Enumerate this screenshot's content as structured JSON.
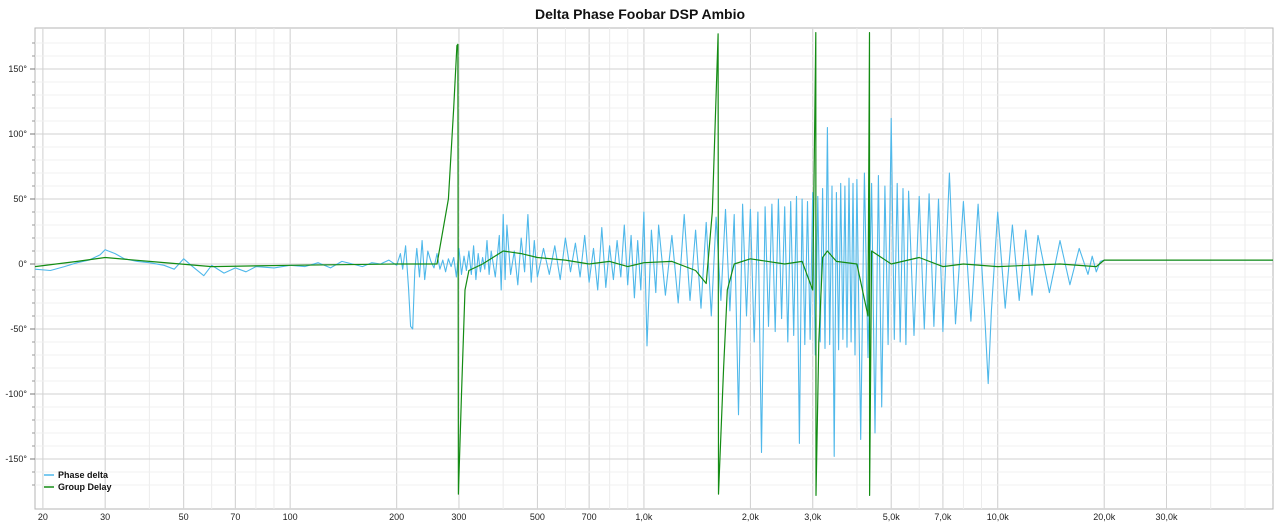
{
  "chart_data": {
    "type": "line",
    "title": "Delta Phase Foobar DSP Ambio",
    "xscale": "log",
    "xlim": [
      19,
      60000
    ],
    "ylim": [
      -180,
      180
    ],
    "grid": true,
    "legend_position": "bottom-left",
    "x_ticks": [
      {
        "value": 20,
        "label": "20"
      },
      {
        "value": 30,
        "label": "30"
      },
      {
        "value": 50,
        "label": "50"
      },
      {
        "value": 70,
        "label": "70"
      },
      {
        "value": 100,
        "label": "100"
      },
      {
        "value": 200,
        "label": "200"
      },
      {
        "value": 300,
        "label": "300"
      },
      {
        "value": 500,
        "label": "500"
      },
      {
        "value": 700,
        "label": "700"
      },
      {
        "value": 1000,
        "label": "1,0k"
      },
      {
        "value": 2000,
        "label": "2,0k"
      },
      {
        "value": 3000,
        "label": "3,0k"
      },
      {
        "value": 5000,
        "label": "5,0k"
      },
      {
        "value": 7000,
        "label": "7,0k"
      },
      {
        "value": 10000,
        "label": "10,0k"
      },
      {
        "value": 20000,
        "label": "20,0k"
      },
      {
        "value": 30000,
        "label": "30,0k"
      }
    ],
    "y_ticks": [
      {
        "value": 150,
        "label": "150°"
      },
      {
        "value": 100,
        "label": "100°"
      },
      {
        "value": 50,
        "label": "50°"
      },
      {
        "value": 0,
        "label": "0°"
      },
      {
        "value": -50,
        "label": "-50°"
      },
      {
        "value": -100,
        "label": "-100°"
      },
      {
        "value": -150,
        "label": "-150°"
      }
    ],
    "series": [
      {
        "name": "Phase delta",
        "color": "#4fb8ea",
        "points": [
          [
            19,
            -4
          ],
          [
            21,
            -5
          ],
          [
            23,
            -2
          ],
          [
            25,
            1
          ],
          [
            27,
            3
          ],
          [
            29,
            7
          ],
          [
            30,
            11
          ],
          [
            32,
            8
          ],
          [
            34,
            4
          ],
          [
            37,
            2
          ],
          [
            40,
            1
          ],
          [
            44,
            -1
          ],
          [
            47,
            -4
          ],
          [
            50,
            4
          ],
          [
            53,
            -2
          ],
          [
            57,
            -9
          ],
          [
            60,
            -1
          ],
          [
            65,
            -7
          ],
          [
            70,
            -3
          ],
          [
            75,
            -6
          ],
          [
            80,
            -2
          ],
          [
            90,
            -3
          ],
          [
            100,
            -1
          ],
          [
            110,
            -2
          ],
          [
            120,
            1
          ],
          [
            130,
            -3
          ],
          [
            140,
            2
          ],
          [
            150,
            0
          ],
          [
            160,
            -2
          ],
          [
            170,
            1
          ],
          [
            180,
            0
          ],
          [
            190,
            3
          ],
          [
            200,
            -1
          ],
          [
            205,
            8
          ],
          [
            208,
            -4
          ],
          [
            212,
            14
          ],
          [
            216,
            -18
          ],
          [
            219,
            -48
          ],
          [
            222,
            -50
          ],
          [
            225,
            -5
          ],
          [
            228,
            12
          ],
          [
            232,
            -10
          ],
          [
            236,
            18
          ],
          [
            240,
            -12
          ],
          [
            245,
            10
          ],
          [
            250,
            2
          ],
          [
            255,
            -3
          ],
          [
            260,
            8
          ],
          [
            265,
            -4
          ],
          [
            270,
            3
          ],
          [
            275,
            -6
          ],
          [
            280,
            4
          ],
          [
            285,
            -2
          ],
          [
            290,
            5
          ],
          [
            295,
            -10
          ],
          [
            300,
            12
          ],
          [
            305,
            -8
          ],
          [
            310,
            6
          ],
          [
            315,
            -5
          ],
          [
            320,
            10
          ],
          [
            325,
            -8
          ],
          [
            330,
            14
          ],
          [
            335,
            -12
          ],
          [
            340,
            8
          ],
          [
            345,
            -6
          ],
          [
            350,
            5
          ],
          [
            355,
            -4
          ],
          [
            360,
            18
          ],
          [
            365,
            -8
          ],
          [
            370,
            10
          ],
          [
            380,
            -10
          ],
          [
            390,
            22
          ],
          [
            395,
            -20
          ],
          [
            400,
            38
          ],
          [
            405,
            -12
          ],
          [
            410,
            30
          ],
          [
            420,
            -8
          ],
          [
            430,
            10
          ],
          [
            440,
            -16
          ],
          [
            450,
            20
          ],
          [
            460,
            -6
          ],
          [
            470,
            38
          ],
          [
            480,
            -14
          ],
          [
            490,
            18
          ],
          [
            500,
            -10
          ],
          [
            520,
            12
          ],
          [
            540,
            -8
          ],
          [
            560,
            14
          ],
          [
            580,
            -12
          ],
          [
            600,
            20
          ],
          [
            620,
            -6
          ],
          [
            640,
            16
          ],
          [
            660,
            -10
          ],
          [
            680,
            22
          ],
          [
            700,
            -14
          ],
          [
            720,
            12
          ],
          [
            740,
            -20
          ],
          [
            760,
            28
          ],
          [
            780,
            -18
          ],
          [
            800,
            14
          ],
          [
            820,
            -12
          ],
          [
            840,
            18
          ],
          [
            860,
            -10
          ],
          [
            880,
            30
          ],
          [
            900,
            -16
          ],
          [
            920,
            22
          ],
          [
            940,
            -26
          ],
          [
            960,
            18
          ],
          [
            980,
            -20
          ],
          [
            1000,
            40
          ],
          [
            1020,
            -63
          ],
          [
            1050,
            26
          ],
          [
            1080,
            -22
          ],
          [
            1100,
            30
          ],
          [
            1150,
            -24
          ],
          [
            1200,
            22
          ],
          [
            1250,
            -30
          ],
          [
            1300,
            38
          ],
          [
            1350,
            -28
          ],
          [
            1400,
            26
          ],
          [
            1450,
            -34
          ],
          [
            1500,
            32
          ],
          [
            1550,
            -40
          ],
          [
            1600,
            36
          ],
          [
            1650,
            -28
          ],
          [
            1700,
            42
          ],
          [
            1750,
            -36
          ],
          [
            1800,
            38
          ],
          [
            1850,
            -116
          ],
          [
            1900,
            46
          ],
          [
            1950,
            -40
          ],
          [
            2000,
            42
          ],
          [
            2050,
            -60
          ],
          [
            2100,
            40
          ],
          [
            2150,
            -145
          ],
          [
            2200,
            44
          ],
          [
            2250,
            -48
          ],
          [
            2300,
            46
          ],
          [
            2350,
            -52
          ],
          [
            2400,
            50
          ],
          [
            2450,
            -42
          ],
          [
            2500,
            44
          ],
          [
            2550,
            -60
          ],
          [
            2600,
            48
          ],
          [
            2650,
            -55
          ],
          [
            2700,
            52
          ],
          [
            2750,
            -138
          ],
          [
            2800,
            50
          ],
          [
            2850,
            -62
          ],
          [
            2900,
            48
          ],
          [
            2950,
            -58
          ],
          [
            3000,
            55
          ],
          [
            3050,
            -70
          ],
          [
            3100,
            52
          ],
          [
            3150,
            -60
          ],
          [
            3200,
            58
          ],
          [
            3250,
            -65
          ],
          [
            3300,
            105
          ],
          [
            3350,
            -62
          ],
          [
            3400,
            60
          ],
          [
            3450,
            -148
          ],
          [
            3500,
            55
          ],
          [
            3550,
            -66
          ],
          [
            3600,
            62
          ],
          [
            3650,
            -58
          ],
          [
            3700,
            60
          ],
          [
            3750,
            -64
          ],
          [
            3800,
            66
          ],
          [
            3850,
            -60
          ],
          [
            3900,
            62
          ],
          [
            3950,
            -70
          ],
          [
            4000,
            65
          ],
          [
            4100,
            -135
          ],
          [
            4200,
            70
          ],
          [
            4300,
            -72
          ],
          [
            4400,
            62
          ],
          [
            4500,
            -130
          ],
          [
            4600,
            68
          ],
          [
            4700,
            -110
          ],
          [
            4800,
            60
          ],
          [
            4900,
            -62
          ],
          [
            5000,
            112
          ],
          [
            5100,
            -58
          ],
          [
            5200,
            62
          ],
          [
            5300,
            -60
          ],
          [
            5400,
            58
          ],
          [
            5500,
            -62
          ],
          [
            5600,
            56
          ],
          [
            5800,
            -55
          ],
          [
            6000,
            52
          ],
          [
            6200,
            -50
          ],
          [
            6400,
            54
          ],
          [
            6600,
            -48
          ],
          [
            6800,
            50
          ],
          [
            7000,
            -52
          ],
          [
            7300,
            70
          ],
          [
            7600,
            -46
          ],
          [
            8000,
            48
          ],
          [
            8400,
            -44
          ],
          [
            8800,
            46
          ],
          [
            9200,
            -42
          ],
          [
            9400,
            -92
          ],
          [
            9600,
            -36
          ],
          [
            10000,
            40
          ],
          [
            10500,
            -34
          ],
          [
            11000,
            30
          ],
          [
            11500,
            -28
          ],
          [
            12000,
            26
          ],
          [
            12500,
            -24
          ],
          [
            13000,
            22
          ],
          [
            14000,
            -22
          ],
          [
            15000,
            18
          ],
          [
            16000,
            -16
          ],
          [
            17000,
            12
          ],
          [
            18000,
            -8
          ],
          [
            18500,
            6
          ],
          [
            19000,
            -6
          ],
          [
            19500,
            2
          ],
          [
            20000,
            3
          ],
          [
            30000,
            3
          ],
          [
            60000,
            3
          ]
        ]
      },
      {
        "name": "Group Delay",
        "color": "#148c14",
        "points": [
          [
            19,
            -2
          ],
          [
            25,
            2
          ],
          [
            30,
            5
          ],
          [
            40,
            2
          ],
          [
            60,
            -2
          ],
          [
            100,
            -1
          ],
          [
            200,
            0
          ],
          [
            260,
            0
          ],
          [
            280,
            50
          ],
          [
            290,
            120
          ],
          [
            296,
            168
          ],
          [
            298,
            169
          ],
          [
            299,
            -177
          ],
          [
            305,
            -100
          ],
          [
            312,
            -20
          ],
          [
            320,
            -5
          ],
          [
            350,
            0
          ],
          [
            400,
            10
          ],
          [
            450,
            8
          ],
          [
            500,
            5
          ],
          [
            600,
            3
          ],
          [
            700,
            0
          ],
          [
            800,
            2
          ],
          [
            900,
            -2
          ],
          [
            1000,
            1
          ],
          [
            1200,
            2
          ],
          [
            1400,
            -5
          ],
          [
            1500,
            -15
          ],
          [
            1560,
            40
          ],
          [
            1620,
            177
          ],
          [
            1625,
            -177
          ],
          [
            1680,
            -80
          ],
          [
            1720,
            -20
          ],
          [
            1800,
            0
          ],
          [
            2000,
            4
          ],
          [
            2500,
            0
          ],
          [
            2800,
            2
          ],
          [
            3000,
            -20
          ],
          [
            3060,
            178
          ],
          [
            3065,
            -178
          ],
          [
            3120,
            -60
          ],
          [
            3200,
            5
          ],
          [
            3300,
            10
          ],
          [
            3500,
            2
          ],
          [
            4000,
            0
          ],
          [
            4300,
            -40
          ],
          [
            4340,
            178
          ],
          [
            4345,
            -178
          ],
          [
            4400,
            10
          ],
          [
            5000,
            0
          ],
          [
            6000,
            5
          ],
          [
            7000,
            -2
          ],
          [
            8000,
            0
          ],
          [
            10000,
            -2
          ],
          [
            15000,
            0
          ],
          [
            19000,
            -2
          ],
          [
            20000,
            3
          ],
          [
            30000,
            3
          ],
          [
            60000,
            3
          ]
        ]
      }
    ]
  }
}
